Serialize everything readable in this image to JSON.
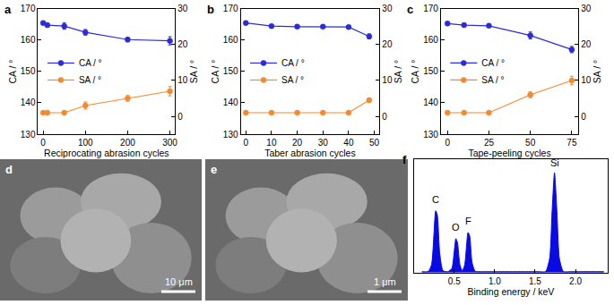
{
  "chart_data": [
    {
      "type": "line",
      "title": "a",
      "x_label": "Reciprocating abrasion cycles",
      "y_label": "CA / °",
      "y2_label": "SA / °",
      "x": [
        0,
        10,
        50,
        100,
        200,
        300
      ],
      "xlim": [
        -12,
        312
      ],
      "xticks": [
        0,
        100,
        200,
        300
      ],
      "ylim": [
        130,
        170
      ],
      "yticks": [
        130,
        140,
        150,
        160,
        170
      ],
      "y2lim": [
        -5,
        30
      ],
      "y2ticks": [
        0,
        10,
        20,
        30
      ],
      "grid": false,
      "legend": "center left",
      "series": [
        {
          "name": "CA / °",
          "color": "#2b2bd9",
          "marker": "circle",
          "values": [
            165.5,
            164.8,
            164.5,
            162.5,
            160.2,
            159.8
          ],
          "error": [
            0.4,
            0.5,
            1.0,
            0.9,
            0.7,
            1.3
          ]
        },
        {
          "name": "SA / °",
          "color": "#f5892e",
          "marker": "circle",
          "axis": "y2",
          "values": [
            1,
            1,
            1,
            3,
            5,
            7
          ],
          "error": [
            0.3,
            0.3,
            0.4,
            1.0,
            0.8,
            1.3
          ]
        }
      ]
    },
    {
      "type": "line",
      "title": "b",
      "x_label": "Taber abrasion cycles",
      "y_label": "CA / °",
      "y2_label": "SA / °",
      "x": [
        0,
        10,
        20,
        30,
        40,
        48
      ],
      "xlim": [
        -2,
        52
      ],
      "xticks": [
        0,
        10,
        20,
        30,
        40,
        50
      ],
      "ylim": [
        130,
        170
      ],
      "yticks": [
        130,
        140,
        150,
        160,
        170
      ],
      "y2lim": [
        -5,
        30
      ],
      "y2ticks": [
        0,
        10,
        20,
        30
      ],
      "grid": false,
      "legend": "center left",
      "series": [
        {
          "name": "CA / °",
          "color": "#2b2bd9",
          "marker": "circle",
          "values": [
            165.5,
            164.5,
            164.3,
            164.3,
            164.2,
            161.2
          ],
          "error": [
            0.3,
            0.3,
            0.3,
            0.3,
            0.3,
            0.8
          ]
        },
        {
          "name": "SA / °",
          "color": "#f5892e",
          "marker": "circle",
          "axis": "y2",
          "values": [
            1,
            1,
            1,
            1,
            1,
            4.5
          ],
          "error": [
            0.2,
            0.2,
            0.2,
            0.2,
            0.2,
            0.6
          ]
        }
      ]
    },
    {
      "type": "line",
      "title": "c",
      "x_label": "Tape-peeling cycles",
      "y_label": "CA / °",
      "y2_label": "SA / °",
      "x": [
        0,
        10,
        25,
        50,
        75
      ],
      "xlim": [
        -4,
        79
      ],
      "xticks": [
        0,
        25,
        50,
        75
      ],
      "ylim": [
        130,
        170
      ],
      "yticks": [
        130,
        140,
        150,
        160,
        170
      ],
      "y2lim": [
        -5,
        30
      ],
      "y2ticks": [
        0,
        10,
        20,
        30
      ],
      "grid": false,
      "legend": "center left",
      "series": [
        {
          "name": "CA / °",
          "color": "#2b2bd9",
          "marker": "circle",
          "values": [
            165.3,
            164.8,
            164.6,
            161.5,
            157
          ],
          "error": [
            0.3,
            0.3,
            0.3,
            1.1,
            1.0
          ]
        },
        {
          "name": "SA / °",
          "color": "#f5892e",
          "marker": "circle",
          "axis": "y2",
          "values": [
            1,
            1,
            1,
            6,
            10
          ],
          "error": [
            0.2,
            0.2,
            0.2,
            0.8,
            1.2
          ]
        }
      ]
    },
    {
      "type": "area",
      "title": "f",
      "x_label": "Binding energy / keV",
      "x": [
        0.1,
        0.18,
        0.22,
        0.25,
        0.27,
        0.29,
        0.32,
        0.36,
        0.42,
        0.47,
        0.5,
        0.52,
        0.54,
        0.57,
        0.6,
        0.63,
        0.65,
        0.67,
        0.69,
        0.72,
        0.76,
        0.85,
        1.0,
        1.2,
        1.4,
        1.55,
        1.63,
        1.68,
        1.71,
        1.74,
        1.77,
        1.8,
        1.85,
        1.93,
        2.1,
        2.35
      ],
      "values": [
        0.01,
        0.012,
        0.08,
        0.39,
        0.6,
        0.56,
        0.19,
        0.02,
        0.01,
        0.04,
        0.21,
        0.33,
        0.29,
        0.076,
        0.018,
        0.08,
        0.24,
        0.39,
        0.36,
        0.1,
        0.014,
        0.01,
        0.01,
        0.01,
        0.01,
        0.01,
        0.011,
        0.14,
        0.59,
        0.97,
        0.59,
        0.14,
        0.011,
        0.01,
        0.01,
        0.01
      ],
      "color": "#0a0ae6",
      "xlim": [
        0,
        2.4
      ],
      "xticks": [
        0.5,
        {
          "value": 1.0,
          "label": "1.0"
        },
        1.5,
        {
          "value": 2.0,
          "label": "2.0"
        }
      ],
      "ylim": [
        0,
        1.1
      ],
      "yticks": [],
      "tick_labels": "x",
      "grid": false,
      "annotations": [
        {
          "text": "C",
          "x": 0.27,
          "y": 0.64
        },
        {
          "text": "O",
          "x": 0.52,
          "y": 0.37
        },
        {
          "text": "F",
          "x": 0.67,
          "y": 0.43
        },
        {
          "text": "Si",
          "x": 1.74,
          "y": 1.0
        }
      ]
    }
  ],
  "images": [
    {
      "panel": "d",
      "scale_bar": "10 μm"
    },
    {
      "panel": "e",
      "scale_bar": "1 μm"
    }
  ]
}
